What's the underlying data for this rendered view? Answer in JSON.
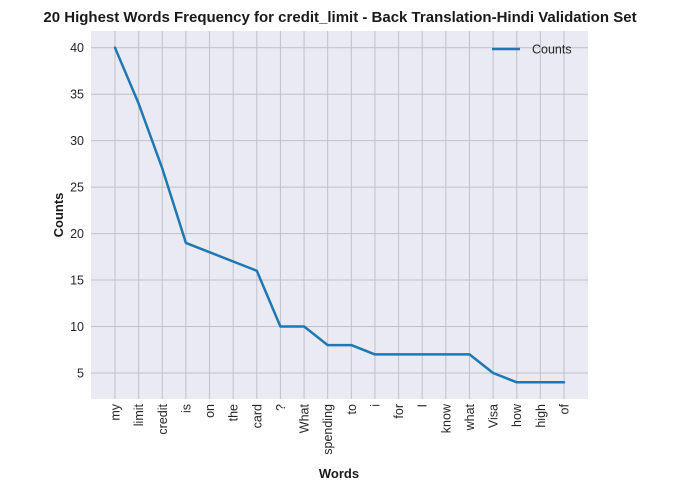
{
  "chart_data": {
    "type": "line",
    "title": "20 Highest Words Frequency for credit_limit - Back Translation-Hindi Validation Set",
    "xlabel": "Words",
    "ylabel": "Counts",
    "categories": [
      "my",
      "limit",
      "credit",
      "is",
      "on",
      "the",
      "card",
      "?",
      "What",
      "spending",
      "to",
      "i",
      "for",
      "I",
      "know",
      "what",
      "Visa",
      "how",
      "high",
      "of"
    ],
    "series": [
      {
        "name": "Counts",
        "color": "#1f77b4",
        "values": [
          40,
          34,
          27,
          19,
          18,
          17,
          16,
          10,
          10,
          8,
          8,
          7,
          7,
          7,
          7,
          7,
          5,
          4,
          4,
          4
        ]
      }
    ],
    "yticks": [
      5,
      10,
      15,
      20,
      25,
      30,
      35,
      40
    ],
    "ylim": [
      2.2,
      41.8
    ],
    "grid": true,
    "legend": "top-right",
    "background": "#eaeaf2",
    "gridColor": "#c0c0c8"
  }
}
